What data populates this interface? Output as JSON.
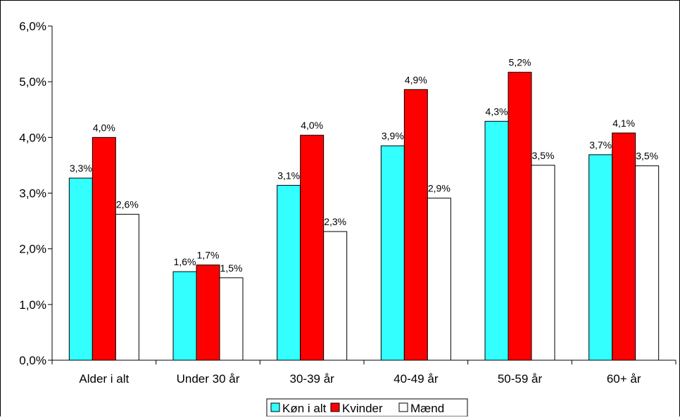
{
  "chart_data": {
    "type": "bar",
    "title": "",
    "xlabel": "",
    "ylabel": "",
    "ylim": [
      0,
      6
    ],
    "yticks": [
      "0,0%",
      "1,0%",
      "2,0%",
      "3,0%",
      "4,0%",
      "5,0%",
      "6,0%"
    ],
    "categories": [
      "Alder i alt",
      "Under 30 år",
      "30-39 år",
      "40-49 år",
      "50-59 år",
      "60+ år"
    ],
    "series": [
      {
        "name": "Køn i alt",
        "color": "#33ffff",
        "values": [
          3.27,
          1.59,
          3.14,
          3.85,
          4.29,
          3.69
        ],
        "labels": [
          "3,3%",
          "1,6%",
          "3,1%",
          "3,9%",
          "4,3%",
          "3,7%"
        ]
      },
      {
        "name": "Kvinder",
        "color": "#ff0000",
        "values": [
          4.0,
          1.71,
          4.04,
          4.86,
          5.17,
          4.08
        ],
        "labels": [
          "4,0%",
          "1,7%",
          "4,0%",
          "4,9%",
          "5,2%",
          "4,1%"
        ]
      },
      {
        "name": "Mænd",
        "color": "#ffffff",
        "values": [
          2.62,
          1.48,
          2.31,
          2.91,
          3.5,
          3.49
        ],
        "labels": [
          "2,6%",
          "1,5%",
          "2,3%",
          "2,9%",
          "3,5%",
          "3,5%"
        ]
      }
    ],
    "grid": false,
    "legend": "bottom"
  }
}
